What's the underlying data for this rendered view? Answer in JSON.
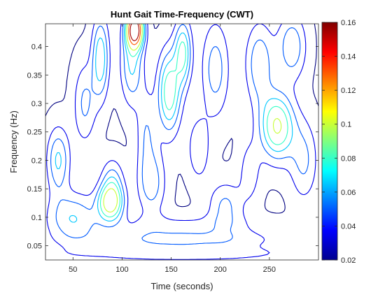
{
  "chart_data": {
    "type": "heatmap",
    "subtype": "contour",
    "title": "Hunt Gait Time-Frequency (CWT)",
    "xlabel": "Time (seconds)",
    "ylabel": "Frequency (Hz)",
    "xlim": [
      22,
      300
    ],
    "ylim": [
      0.025,
      0.44
    ],
    "xticks": [
      50,
      100,
      150,
      200,
      250
    ],
    "xtick_labels": [
      "50",
      "100",
      "150",
      "200",
      "250"
    ],
    "yticks": [
      0.05,
      0.1,
      0.15,
      0.2,
      0.25,
      0.3,
      0.35,
      0.4
    ],
    "ytick_labels": [
      "0.05",
      "0.1",
      "0.15",
      "0.2",
      "0.25",
      "0.3",
      "0.35",
      "0.4"
    ],
    "colorbar": {
      "colormap": "jet",
      "range": [
        0.02,
        0.16
      ],
      "ticks": [
        0.02,
        0.04,
        0.06,
        0.08,
        0.1,
        0.12,
        0.14,
        0.16
      ],
      "tick_labels": [
        "0.02",
        "0.04",
        "0.06",
        "0.08",
        "0.1",
        "0.12",
        "0.14",
        "0.16"
      ]
    },
    "contour_levels": [
      0.02,
      0.035,
      0.05,
      0.065,
      0.08,
      0.1,
      0.13,
      0.155
    ],
    "peaks": [
      {
        "t": 88,
        "f": 0.125,
        "amp": 0.085,
        "st": 9,
        "sf": 0.022
      },
      {
        "t": 258,
        "f": 0.26,
        "amp": 0.085,
        "st": 12,
        "sf": 0.04
      },
      {
        "t": 113,
        "f": 0.43,
        "amp": 0.155,
        "st": 6,
        "sf": 0.022
      },
      {
        "t": 78,
        "f": 0.38,
        "amp": 0.06,
        "st": 6,
        "sf": 0.05
      },
      {
        "t": 148,
        "f": 0.32,
        "amp": 0.075,
        "st": 8,
        "sf": 0.05
      },
      {
        "t": 162,
        "f": 0.39,
        "amp": 0.065,
        "st": 6,
        "sf": 0.04
      },
      {
        "t": 110,
        "f": 0.37,
        "amp": 0.05,
        "st": 8,
        "sf": 0.05
      },
      {
        "t": 35,
        "f": 0.2,
        "amp": 0.05,
        "st": 8,
        "sf": 0.04
      },
      {
        "t": 240,
        "f": 0.37,
        "amp": 0.045,
        "st": 10,
        "sf": 0.05
      },
      {
        "t": 273,
        "f": 0.4,
        "amp": 0.045,
        "st": 10,
        "sf": 0.04
      },
      {
        "t": 90,
        "f": 0.16,
        "amp": 0.04,
        "st": 8,
        "sf": 0.03
      },
      {
        "t": 62,
        "f": 0.3,
        "amp": 0.035,
        "st": 8,
        "sf": 0.05
      },
      {
        "t": 195,
        "f": 0.36,
        "amp": 0.04,
        "st": 10,
        "sf": 0.06
      },
      {
        "t": 50,
        "f": 0.1,
        "amp": 0.045,
        "st": 18,
        "sf": 0.03
      },
      {
        "t": 130,
        "f": 0.16,
        "amp": 0.04,
        "st": 10,
        "sf": 0.04
      },
      {
        "t": 205,
        "f": 0.12,
        "amp": 0.035,
        "st": 12,
        "sf": 0.03
      },
      {
        "t": 178,
        "f": 0.22,
        "amp": 0.03,
        "st": 8,
        "sf": 0.04
      },
      {
        "t": 285,
        "f": 0.2,
        "amp": 0.035,
        "st": 10,
        "sf": 0.05
      },
      {
        "t": 125,
        "f": 0.25,
        "amp": 0.03,
        "st": 7,
        "sf": 0.05
      },
      {
        "t": 230,
        "f": 0.18,
        "amp": 0.025,
        "st": 8,
        "sf": 0.04
      },
      {
        "t": 160,
        "f": 0.06,
        "amp": 0.03,
        "st": 70,
        "sf": 0.012
      },
      {
        "t": 160,
        "f": 0.035,
        "amp": 0.025,
        "st": 90,
        "sf": 0.01
      },
      {
        "t": 160,
        "f": 0.085,
        "amp": 0.02,
        "st": 60,
        "sf": 0.015
      }
    ],
    "background": 0.018
  }
}
